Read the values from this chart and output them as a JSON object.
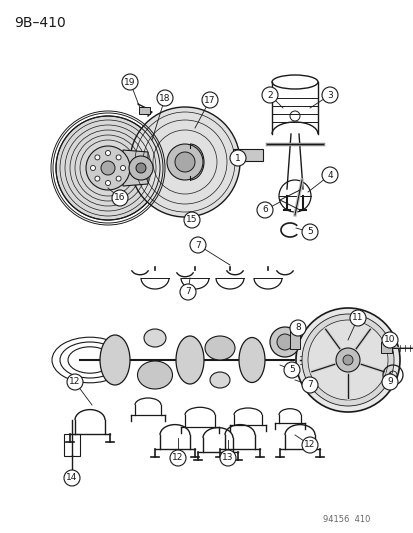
{
  "title": "9B–410",
  "footer": "94156  410",
  "bg_color": "#ffffff",
  "line_color": "#1a1a1a",
  "figsize": [
    4.14,
    5.33
  ],
  "dpi": 100
}
